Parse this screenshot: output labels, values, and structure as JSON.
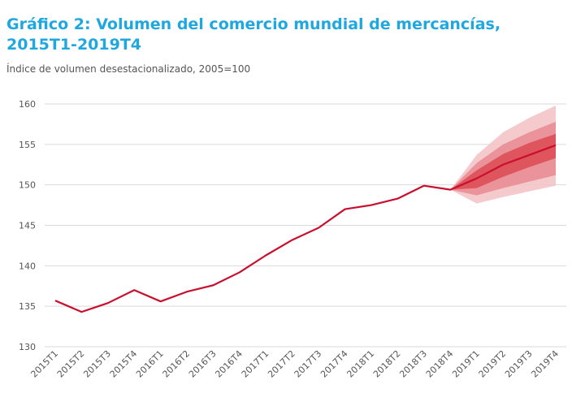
{
  "chart_data": {
    "type": "line",
    "title": "Gráfico 2: Volumen del comercio mundial de mercancías, 2015T1-2019T4",
    "subtitle": "Índice de volumen desestacionalizado, 2005=100",
    "xlabel": "",
    "ylabel": "",
    "ylim": [
      130,
      160
    ],
    "yticks": [
      130,
      135,
      140,
      145,
      150,
      155,
      160
    ],
    "grid": true,
    "categories": [
      "2015T1",
      "2015T2",
      "2015T3",
      "2015T4",
      "2016T1",
      "2016T2",
      "2016T3",
      "2016T4",
      "2017T1",
      "2017T2",
      "2017T3",
      "2017T4",
      "2018T1",
      "2018T2",
      "2018T3",
      "2018T4",
      "2019T1",
      "2019T2",
      "2019T3",
      "2019T4"
    ],
    "series": [
      {
        "name": "Volumen",
        "values": [
          135.7,
          134.3,
          135.4,
          137.0,
          135.6,
          136.8,
          137.6,
          139.2,
          141.3,
          143.2,
          144.7,
          147.0,
          147.5,
          148.3,
          149.9,
          149.4,
          150.8,
          152.5,
          153.7,
          154.9
        ]
      }
    ],
    "fan_bands": {
      "categories": [
        "2018T4",
        "2019T1",
        "2019T2",
        "2019T3",
        "2019T4"
      ],
      "outer": {
        "low": [
          149.4,
          147.7,
          148.5,
          149.2,
          149.9
        ],
        "high": [
          149.4,
          153.7,
          156.5,
          158.3,
          159.8
        ]
      },
      "middle": {
        "low": [
          149.4,
          148.7,
          149.6,
          150.4,
          151.2
        ],
        "high": [
          149.4,
          152.7,
          155.0,
          156.5,
          157.8
        ]
      },
      "inner": {
        "low": [
          149.4,
          149.6,
          151.0,
          152.2,
          153.3
        ],
        "high": [
          149.4,
          151.8,
          153.8,
          155.2,
          156.3
        ]
      }
    },
    "colors": {
      "line": "#c8102e",
      "outer": "#f3c1c4",
      "middle": "#e98a90",
      "inner": "#dc4a53",
      "grid": "#d9d9d9"
    }
  }
}
